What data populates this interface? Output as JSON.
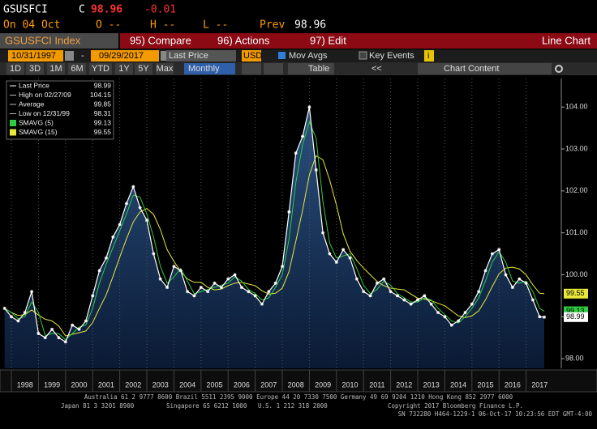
{
  "header": {
    "ticker": "GSUSFCI",
    "flag": "C",
    "price": "98.96",
    "change": "-0.01",
    "date": "On 04 Oct",
    "open": "O --",
    "high": "H --",
    "low": "L --",
    "prev_label": "Prev",
    "prev": "98.96"
  },
  "toolbar": {
    "security": "GSUSFCI Index",
    "menus": [
      "95) Compare",
      "96) Actions",
      "97) Edit"
    ],
    "view": "Line Chart"
  },
  "controls": {
    "start": "10/31/1997",
    "separator": "-",
    "end": "09/29/2017",
    "field": "Last Price",
    "currency": "USD",
    "mov_avgs": "Mov Avgs",
    "key_events": "Key Events",
    "info": "i"
  },
  "ranges": [
    "1D",
    "3D",
    "1M",
    "6M",
    "YTD",
    "1Y",
    "5Y",
    "Max"
  ],
  "periodicity": "Monthly",
  "table": "Table",
  "back": "<<",
  "chart_content": "Chart Content",
  "chart_data": {
    "type": "line",
    "x": [
      1997.75,
      1998,
      1998.25,
      1998.5,
      1998.75,
      1999,
      1999.25,
      1999.5,
      1999.75,
      2000,
      2000.25,
      2000.5,
      2000.75,
      2001,
      2001.25,
      2001.5,
      2001.75,
      2002,
      2002.25,
      2002.5,
      2002.75,
      2003,
      2003.25,
      2003.5,
      2003.75,
      2004,
      2004.25,
      2004.5,
      2004.75,
      2005,
      2005.25,
      2005.5,
      2005.75,
      2006,
      2006.25,
      2006.5,
      2006.75,
      2007,
      2007.25,
      2007.5,
      2007.75,
      2008,
      2008.25,
      2008.5,
      2008.75,
      2009,
      2009.25,
      2009.5,
      2009.75,
      2010,
      2010.25,
      2010.5,
      2010.75,
      2011,
      2011.25,
      2011.5,
      2011.75,
      2012,
      2012.25,
      2012.5,
      2012.75,
      2013,
      2013.25,
      2013.5,
      2013.75,
      2014,
      2014.25,
      2014.5,
      2014.75,
      2015,
      2015.25,
      2015.5,
      2015.75,
      2016,
      2016.25,
      2016.5,
      2016.75,
      2017,
      2017.25,
      2017.5,
      2017.67
    ],
    "series": [
      {
        "name": "Last Price",
        "color": "#ffffff",
        "values": [
          99.2,
          99.0,
          98.9,
          99.1,
          99.6,
          98.6,
          98.5,
          98.7,
          98.5,
          98.4,
          98.8,
          98.7,
          98.9,
          99.5,
          100.1,
          100.4,
          100.9,
          101.2,
          101.7,
          102.1,
          101.6,
          101.3,
          100.5,
          99.9,
          99.7,
          100.2,
          100.1,
          99.6,
          99.5,
          99.7,
          99.6,
          99.8,
          99.7,
          99.9,
          100.0,
          99.7,
          99.6,
          99.5,
          99.3,
          99.6,
          99.8,
          100.2,
          101.5,
          102.9,
          103.3,
          104.0,
          102.5,
          101.0,
          100.5,
          100.3,
          100.6,
          100.4,
          99.9,
          99.6,
          99.5,
          99.8,
          99.9,
          99.6,
          99.5,
          99.4,
          99.3,
          99.4,
          99.5,
          99.3,
          99.1,
          99.0,
          98.8,
          98.9,
          99.1,
          99.3,
          99.6,
          100.1,
          100.5,
          100.6,
          100.0,
          99.7,
          99.9,
          99.8,
          99.4,
          99.0,
          98.99
        ]
      },
      {
        "name": "SMAVG (5)",
        "color": "#2ecc40",
        "values": [
          99.2,
          99.1,
          98.95,
          99.0,
          99.35,
          99.1,
          98.55,
          98.6,
          98.6,
          98.45,
          98.6,
          98.75,
          98.8,
          99.2,
          99.8,
          100.25,
          100.65,
          101.05,
          101.45,
          101.9,
          101.85,
          101.45,
          100.9,
          100.2,
          99.8,
          99.95,
          100.15,
          99.85,
          99.55,
          99.6,
          99.65,
          99.7,
          99.75,
          99.8,
          99.95,
          99.85,
          99.65,
          99.55,
          99.4,
          99.45,
          99.7,
          100.0,
          100.85,
          102.2,
          103.1,
          103.65,
          103.25,
          101.75,
          100.75,
          100.4,
          100.45,
          100.5,
          100.15,
          99.75,
          99.55,
          99.65,
          99.85,
          99.75,
          99.55,
          99.45,
          99.35,
          99.35,
          99.45,
          99.4,
          99.2,
          99.05,
          98.9,
          98.85,
          99.0,
          99.2,
          99.45,
          99.85,
          100.3,
          100.55,
          100.3,
          99.85,
          99.8,
          99.85,
          99.6,
          99.2,
          99.13
        ]
      },
      {
        "name": "SMAVG (15)",
        "color": "#e8e83a",
        "values": [
          99.2,
          99.1,
          99.03,
          99.05,
          99.16,
          99.04,
          98.94,
          98.9,
          98.78,
          98.54,
          98.58,
          98.62,
          98.66,
          98.86,
          99.2,
          99.52,
          99.96,
          100.42,
          100.86,
          101.26,
          101.5,
          101.58,
          101.44,
          101.08,
          100.6,
          100.32,
          100.08,
          99.9,
          99.82,
          99.82,
          99.7,
          99.64,
          99.66,
          99.74,
          99.8,
          99.82,
          99.78,
          99.74,
          99.62,
          99.54,
          99.56,
          99.68,
          100.08,
          100.8,
          101.54,
          102.38,
          102.84,
          102.74,
          102.26,
          101.66,
          100.98,
          100.56,
          100.34,
          100.16,
          100.0,
          99.84,
          99.74,
          99.68,
          99.66,
          99.64,
          99.54,
          99.44,
          99.42,
          99.38,
          99.32,
          99.26,
          99.14,
          99.02,
          98.98,
          99.02,
          99.14,
          99.4,
          99.72,
          100.02,
          100.16,
          100.18,
          100.14,
          100.0,
          99.76,
          99.56,
          99.55
        ]
      }
    ],
    "stats": [
      {
        "label": "High on 02/27/09",
        "value": 104.15
      },
      {
        "label": "Average",
        "value": 99.85
      },
      {
        "label": "Low on 12/31/99",
        "value": 98.31
      }
    ],
    "xlim": [
      1997.7,
      2018.3
    ],
    "xticks": [
      1998,
      1999,
      2000,
      2001,
      2002,
      2003,
      2004,
      2005,
      2006,
      2007,
      2008,
      2009,
      2010,
      2011,
      2012,
      2013,
      2014,
      2015,
      2016,
      2017
    ],
    "ylim": [
      97.77,
      104.68
    ],
    "yticks": [
      {
        "value": 98,
        "label": "98.00"
      },
      {
        "value": 99,
        "label": "99.00"
      },
      {
        "value": 100,
        "label": "100.00"
      },
      {
        "value": 101,
        "label": "101.00"
      },
      {
        "value": 102,
        "label": "102.00"
      },
      {
        "value": 103,
        "label": "103.00"
      },
      {
        "value": 104,
        "label": "104.00"
      }
    ],
    "grid": true
  },
  "footer": {
    "line1": "Australia 61 2 9777 8600 Brazil 5511 2395 9000 Europe 44 20 7330 7500 Germany 49 69 9204 1210 Hong Kong 852 2977 6000",
    "line2": [
      "Japan 81 3 3201 8900",
      "Singapore 65 6212 1000",
      "U.S. 1 212 318 2000",
      "Copyright 2017 Bloomberg Finance L.P."
    ],
    "line3": "SN 732280 H464-1229-1 06-Oct-17 10:23:56 EDT  GMT-4:00"
  }
}
